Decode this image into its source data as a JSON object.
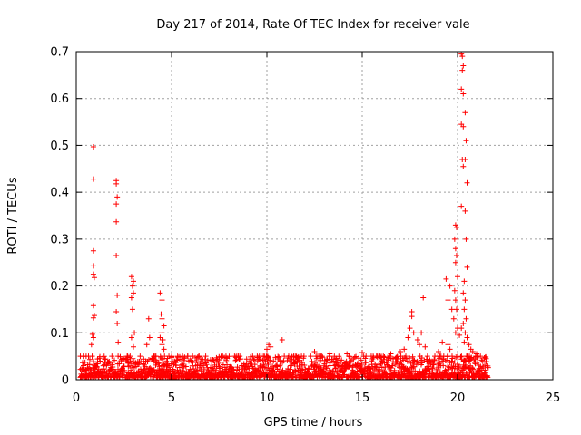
{
  "chart_data": {
    "type": "scatter",
    "title": "Day 217 of 2014, Rate Of TEC Index for receiver vale",
    "xlabel": "GPS time / hours",
    "ylabel": "ROTI / TECUs",
    "xlim": [
      0,
      25
    ],
    "ylim": [
      0,
      0.7
    ],
    "xticks": [
      0,
      5,
      10,
      15,
      20,
      25
    ],
    "yticks": [
      0,
      0.1,
      0.2,
      0.3,
      0.4,
      0.5,
      0.6,
      0.7
    ],
    "xtick_labels": [
      "0",
      "5",
      "10",
      "15",
      "20",
      "25"
    ],
    "ytick_labels": [
      "0",
      "0.1",
      "0.2",
      "0.3",
      "0.4",
      "0.5",
      "0.6",
      "0.7"
    ],
    "grid": true,
    "marker": "+",
    "marker_color": "#ff0000",
    "data_range_hours": [
      0.2,
      21.6
    ],
    "baseline_max": 0.05,
    "series": [
      {
        "name": "ROTI",
        "points": [
          [
            0.9,
            0.497
          ],
          [
            0.9,
            0.428
          ],
          [
            0.9,
            0.275
          ],
          [
            0.9,
            0.243
          ],
          [
            0.9,
            0.225
          ],
          [
            0.95,
            0.218
          ],
          [
            0.9,
            0.158
          ],
          [
            0.95,
            0.137
          ],
          [
            0.9,
            0.132
          ],
          [
            0.85,
            0.097
          ],
          [
            0.9,
            0.09
          ],
          [
            0.8,
            0.075
          ],
          [
            2.1,
            0.425
          ],
          [
            2.1,
            0.418
          ],
          [
            2.15,
            0.39
          ],
          [
            2.1,
            0.375
          ],
          [
            2.1,
            0.337
          ],
          [
            2.1,
            0.265
          ],
          [
            2.15,
            0.18
          ],
          [
            2.1,
            0.145
          ],
          [
            2.15,
            0.12
          ],
          [
            2.2,
            0.08
          ],
          [
            2.9,
            0.22
          ],
          [
            3.0,
            0.21
          ],
          [
            2.95,
            0.2
          ],
          [
            3.0,
            0.185
          ],
          [
            2.9,
            0.175
          ],
          [
            2.95,
            0.15
          ],
          [
            3.05,
            0.1
          ],
          [
            2.9,
            0.09
          ],
          [
            3.0,
            0.07
          ],
          [
            3.7,
            0.075
          ],
          [
            3.8,
            0.13
          ],
          [
            3.85,
            0.09
          ],
          [
            4.4,
            0.185
          ],
          [
            4.5,
            0.17
          ],
          [
            4.45,
            0.14
          ],
          [
            4.5,
            0.13
          ],
          [
            4.6,
            0.115
          ],
          [
            4.5,
            0.1
          ],
          [
            4.4,
            0.09
          ],
          [
            4.55,
            0.085
          ],
          [
            4.5,
            0.075
          ],
          [
            4.6,
            0.065
          ],
          [
            10.1,
            0.075
          ],
          [
            10.2,
            0.07
          ],
          [
            10.8,
            0.085
          ],
          [
            10.0,
            0.065
          ],
          [
            12.5,
            0.06
          ],
          [
            13.3,
            0.055
          ],
          [
            14.2,
            0.055
          ],
          [
            15.0,
            0.058
          ],
          [
            16.5,
            0.055
          ],
          [
            17.0,
            0.06
          ],
          [
            17.2,
            0.065
          ],
          [
            17.6,
            0.145
          ],
          [
            17.6,
            0.135
          ],
          [
            17.5,
            0.11
          ],
          [
            17.7,
            0.1
          ],
          [
            17.4,
            0.09
          ],
          [
            17.9,
            0.085
          ],
          [
            18.1,
            0.1
          ],
          [
            18.2,
            0.175
          ],
          [
            18.0,
            0.075
          ],
          [
            18.3,
            0.07
          ],
          [
            19.0,
            0.06
          ],
          [
            19.2,
            0.08
          ],
          [
            19.4,
            0.215
          ],
          [
            19.6,
            0.2
          ],
          [
            19.5,
            0.17
          ],
          [
            19.7,
            0.15
          ],
          [
            19.5,
            0.075
          ],
          [
            19.6,
            0.065
          ],
          [
            19.9,
            0.33
          ],
          [
            19.95,
            0.325
          ],
          [
            19.85,
            0.3
          ],
          [
            19.9,
            0.28
          ],
          [
            19.95,
            0.265
          ],
          [
            19.9,
            0.25
          ],
          [
            20.0,
            0.22
          ],
          [
            19.85,
            0.19
          ],
          [
            19.9,
            0.17
          ],
          [
            19.95,
            0.15
          ],
          [
            19.8,
            0.13
          ],
          [
            20.0,
            0.11
          ],
          [
            19.9,
            0.1
          ],
          [
            20.2,
            0.695
          ],
          [
            20.25,
            0.69
          ],
          [
            20.3,
            0.67
          ],
          [
            20.25,
            0.66
          ],
          [
            20.2,
            0.62
          ],
          [
            20.3,
            0.61
          ],
          [
            20.2,
            0.545
          ],
          [
            20.3,
            0.54
          ],
          [
            20.25,
            0.47
          ],
          [
            20.3,
            0.455
          ],
          [
            20.2,
            0.37
          ],
          [
            20.4,
            0.57
          ],
          [
            20.45,
            0.51
          ],
          [
            20.4,
            0.47
          ],
          [
            20.5,
            0.42
          ],
          [
            20.4,
            0.36
          ],
          [
            20.45,
            0.3
          ],
          [
            20.5,
            0.24
          ],
          [
            20.35,
            0.21
          ],
          [
            20.3,
            0.185
          ],
          [
            20.4,
            0.17
          ],
          [
            20.35,
            0.15
          ],
          [
            20.45,
            0.13
          ],
          [
            20.3,
            0.12
          ],
          [
            20.4,
            0.1
          ],
          [
            20.5,
            0.09
          ],
          [
            20.35,
            0.08
          ],
          [
            20.6,
            0.075
          ],
          [
            20.7,
            0.065
          ],
          [
            20.2,
            0.11
          ],
          [
            20.1,
            0.095
          ],
          [
            20.8,
            0.06
          ],
          [
            21.0,
            0.055
          ],
          [
            21.2,
            0.05
          ],
          [
            21.5,
            0.045
          ]
        ]
      }
    ]
  }
}
